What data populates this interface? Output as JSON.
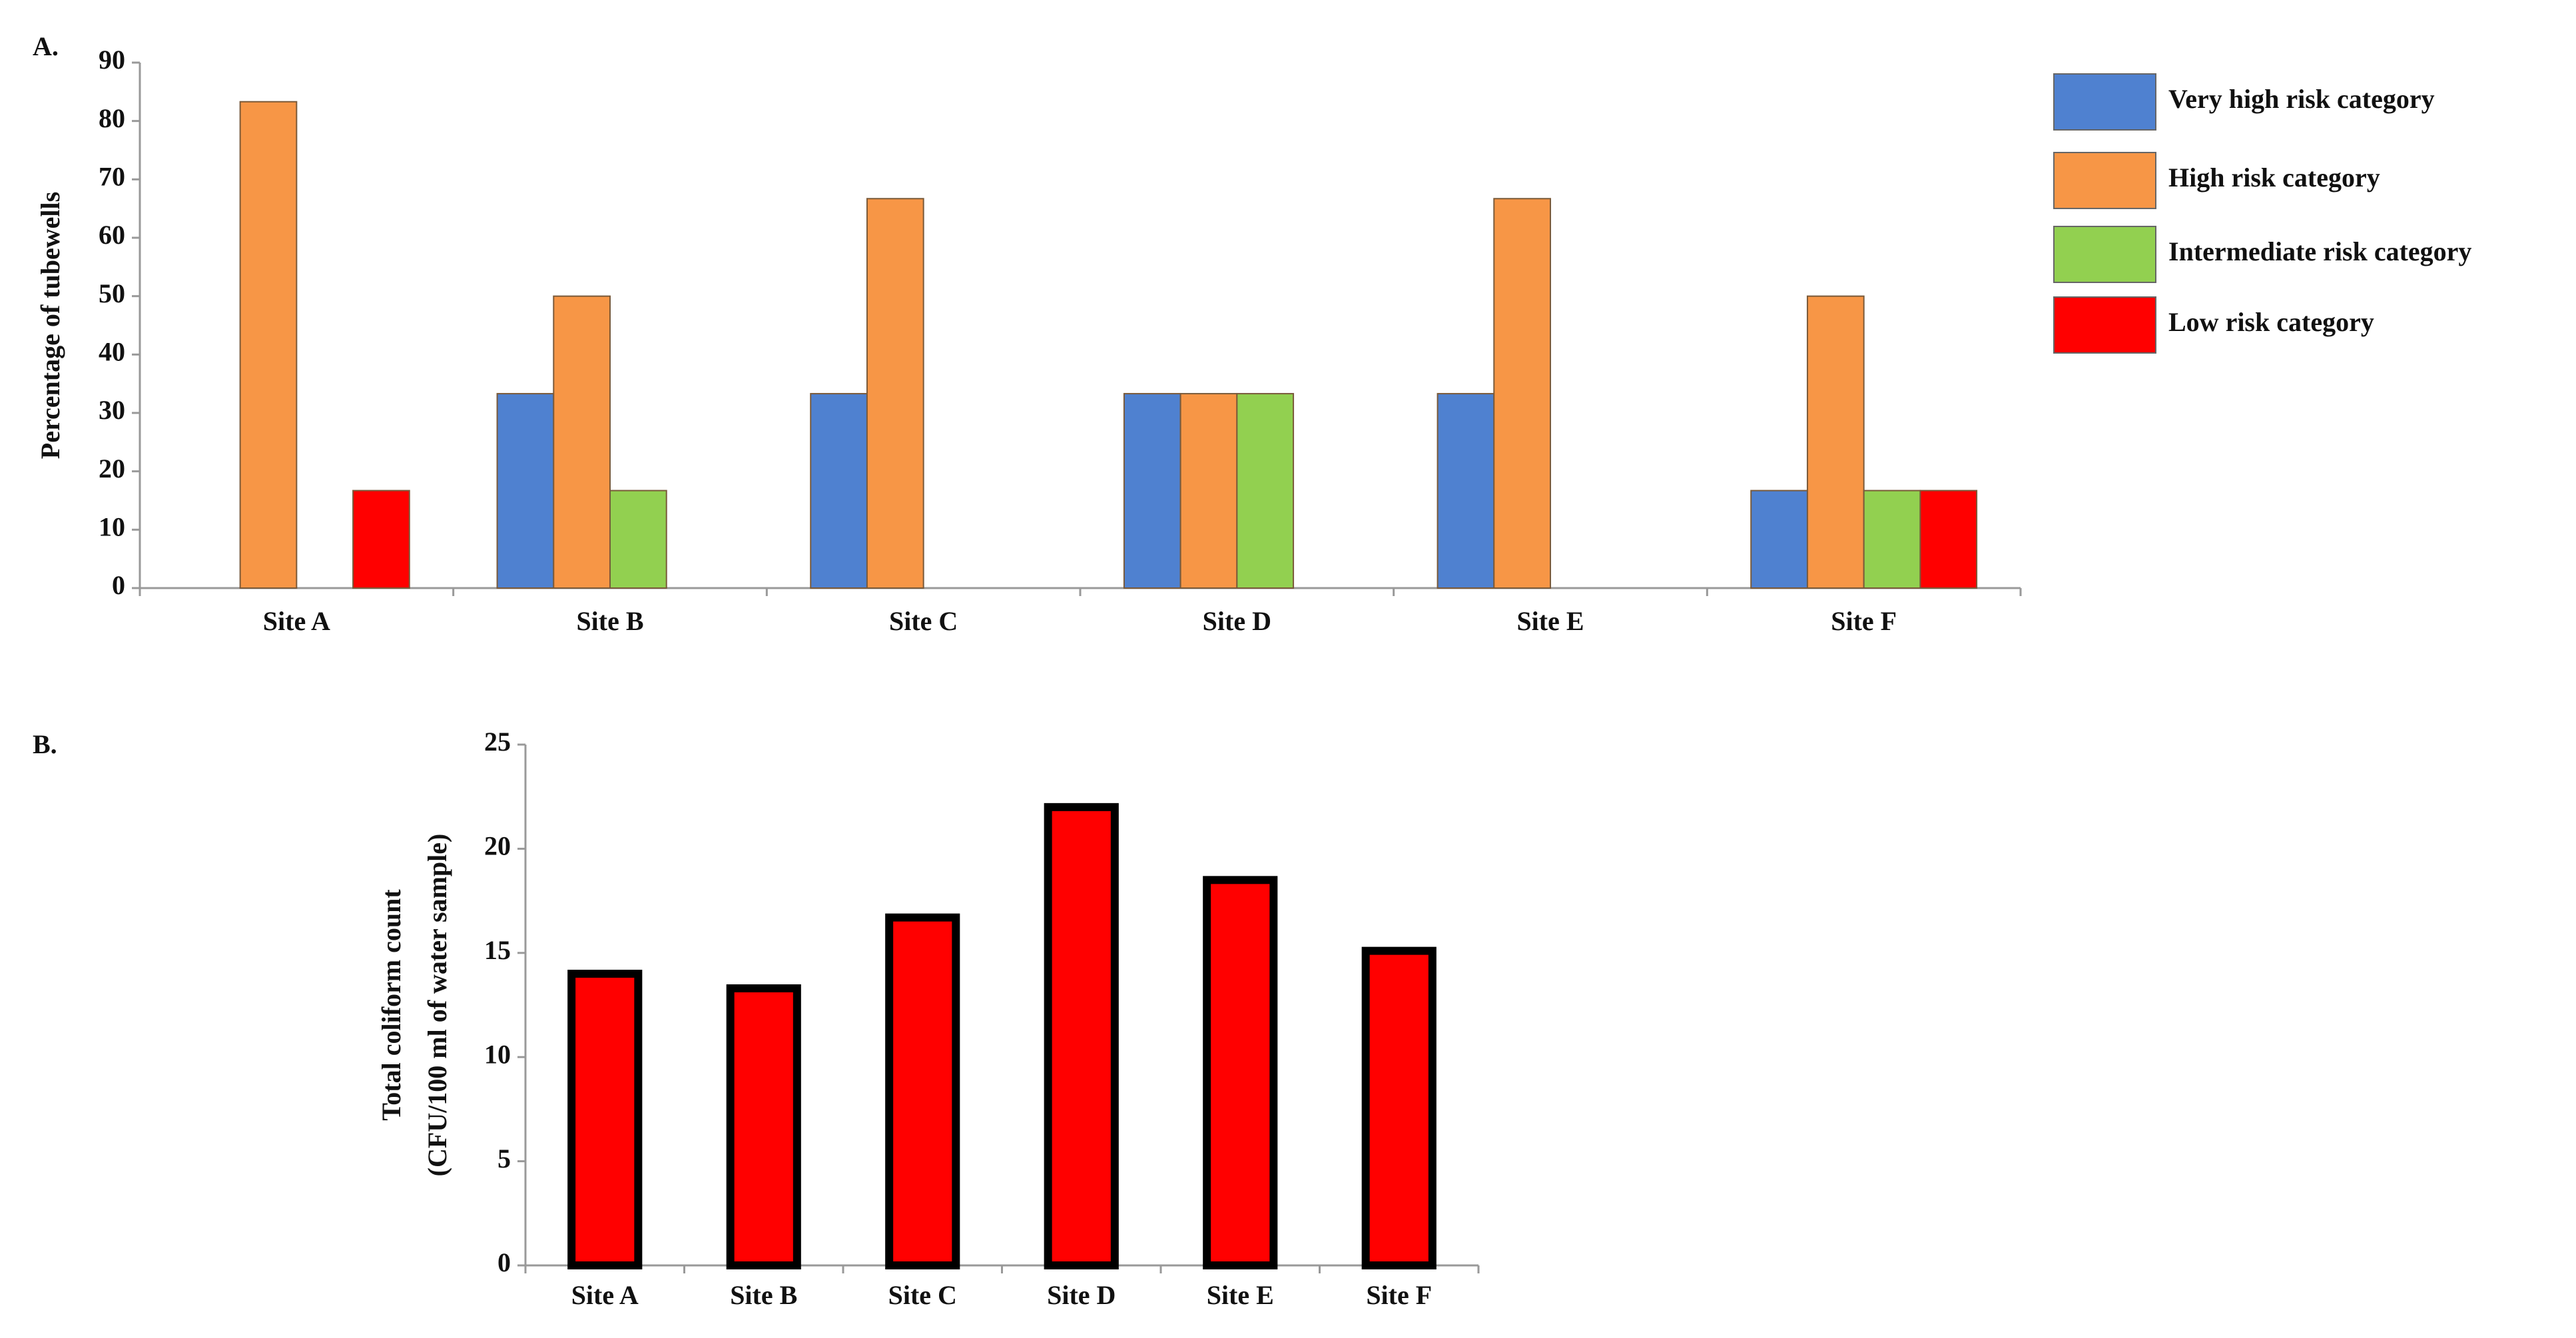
{
  "chart_data": [
    {
      "type": "bar",
      "panel_label": "A.",
      "ylabel": "Percentage of tubewells",
      "categories": [
        "Site A",
        "Site B",
        "Site C",
        "Site D",
        "Site E",
        "Site F"
      ],
      "series": [
        {
          "name": "Very high risk category",
          "color": "#4f81d0",
          "values": [
            0,
            33.3,
            33.3,
            33.3,
            33.3,
            16.7
          ]
        },
        {
          "name": "High risk category",
          "color": "#f79646",
          "values": [
            83.3,
            50,
            66.7,
            33.3,
            66.7,
            50
          ]
        },
        {
          "name": "Intermediate risk category",
          "color": "#92d050",
          "values": [
            0,
            16.7,
            0,
            33.3,
            0,
            16.7
          ]
        },
        {
          "name": "Low risk category",
          "color": "#ff0000",
          "values": [
            16.7,
            0,
            0,
            0,
            0,
            16.7
          ]
        }
      ],
      "ylim": [
        0,
        90
      ],
      "yticks": [
        0,
        10,
        20,
        30,
        40,
        50,
        60,
        70,
        80,
        90
      ],
      "legend": "right"
    },
    {
      "type": "bar",
      "panel_label": "B.",
      "ylabel": [
        "Total coliform count",
        "(CFU/100 ml of water sample)"
      ],
      "categories": [
        "Site A",
        "Site B",
        "Site C",
        "Site D",
        "Site E",
        "Site F"
      ],
      "values": [
        14,
        13.3,
        16.7,
        22,
        18.5,
        15.1
      ],
      "color": "#ff0000",
      "ylim": [
        0,
        25
      ],
      "yticks": [
        0,
        5,
        10,
        15,
        20,
        25
      ]
    }
  ]
}
